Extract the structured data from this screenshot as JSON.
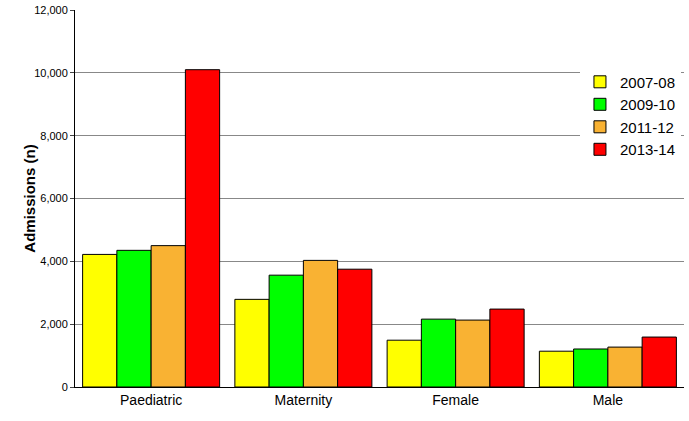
{
  "chart_data": {
    "type": "bar",
    "y_label": "Admissions (n)",
    "categories": [
      "Paediatric",
      "Maternity",
      "Female",
      "Male"
    ],
    "series": [
      {
        "name": "2007-08",
        "color": "#ffff00",
        "values": [
          4220,
          2790,
          1490,
          1140
        ]
      },
      {
        "name": "2009-10",
        "color": "#00ff00",
        "values": [
          4350,
          3560,
          2160,
          1210
        ]
      },
      {
        "name": "2011-12",
        "color": "#f9b233",
        "values": [
          4500,
          4030,
          2130,
          1270
        ]
      },
      {
        "name": "2013-14",
        "color": "#ff0000",
        "values": [
          10100,
          3750,
          2480,
          1590
        ]
      }
    ],
    "ylim": [
      0,
      12000
    ],
    "yticks": [
      0,
      {
        "value": 2000,
        "label": "2,000"
      },
      {
        "value": 4000,
        "label": "4,000"
      },
      {
        "value": 6000,
        "label": "6,000"
      },
      {
        "value": 8000,
        "label": "8,000"
      },
      {
        "value": 10000,
        "label": "10,000"
      },
      {
        "value": 12000,
        "label": "12,000"
      }
    ],
    "grid": true,
    "legend": "right"
  }
}
